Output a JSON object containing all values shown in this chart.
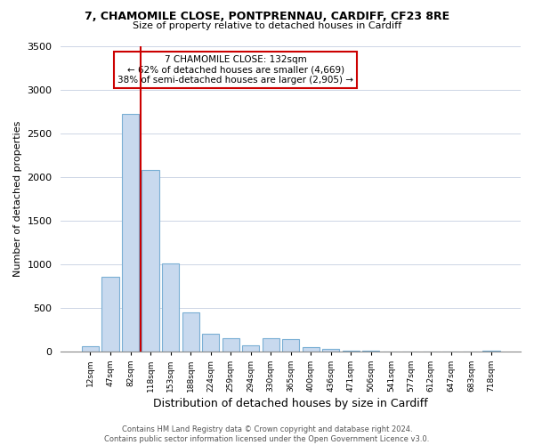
{
  "title1": "7, CHAMOMILE CLOSE, PONTPRENNAU, CARDIFF, CF23 8RE",
  "title2": "Size of property relative to detached houses in Cardiff",
  "xlabel": "Distribution of detached houses by size in Cardiff",
  "ylabel": "Number of detached properties",
  "bar_labels": [
    "12sqm",
    "47sqm",
    "82sqm",
    "118sqm",
    "153sqm",
    "188sqm",
    "224sqm",
    "259sqm",
    "294sqm",
    "330sqm",
    "365sqm",
    "400sqm",
    "436sqm",
    "471sqm",
    "506sqm",
    "541sqm",
    "577sqm",
    "612sqm",
    "647sqm",
    "683sqm",
    "718sqm"
  ],
  "bar_values": [
    55,
    855,
    2720,
    2080,
    1010,
    450,
    205,
    145,
    65,
    150,
    140,
    45,
    25,
    10,
    10,
    0,
    0,
    0,
    0,
    0,
    5
  ],
  "bar_color": "#c8d9ee",
  "bar_edge_color": "#7aafd4",
  "vline_color": "#cc0000",
  "vline_x_index": 2.5,
  "annotation_title": "7 CHAMOMILE CLOSE: 132sqm",
  "annotation_line1": "← 62% of detached houses are smaller (4,669)",
  "annotation_line2": "38% of semi-detached houses are larger (2,905) →",
  "box_edge_color": "#cc0000",
  "ylim": [
    0,
    3500
  ],
  "yticks": [
    0,
    500,
    1000,
    1500,
    2000,
    2500,
    3000,
    3500
  ],
  "footer1": "Contains HM Land Registry data © Crown copyright and database right 2024.",
  "footer2": "Contains public sector information licensed under the Open Government Licence v3.0."
}
